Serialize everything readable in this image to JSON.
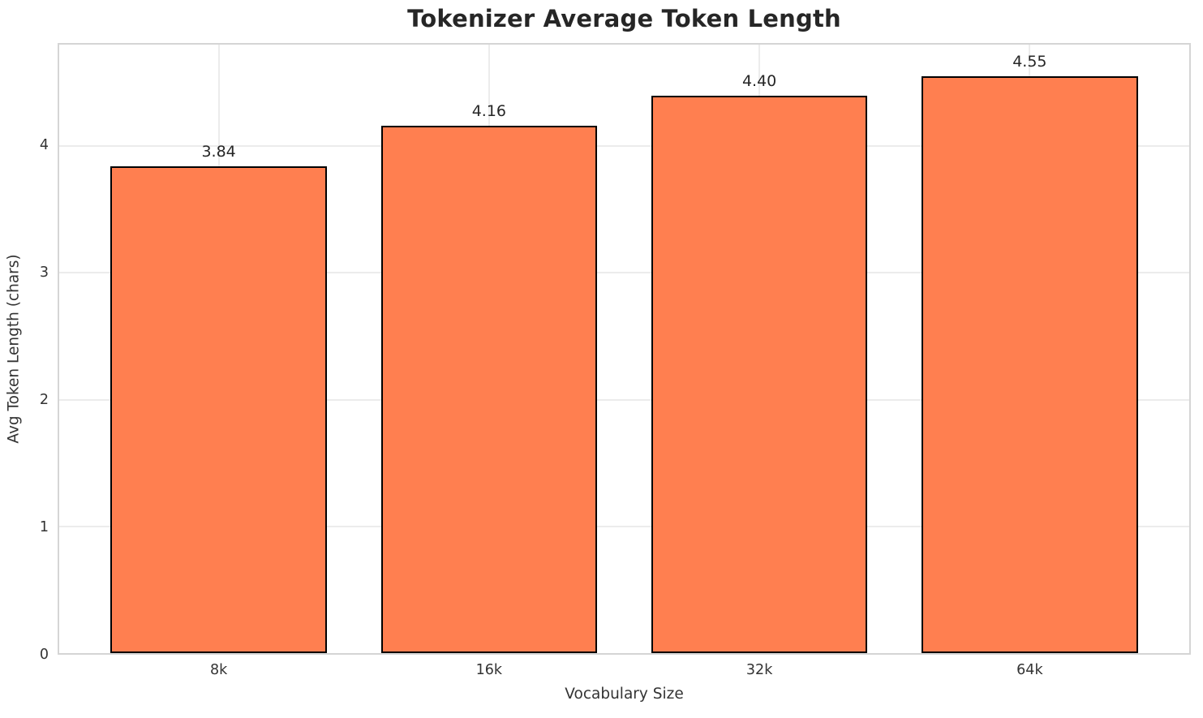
{
  "page": {
    "background_color": "#ffffff"
  },
  "chart_data": {
    "type": "bar",
    "title": "Tokenizer Average Token Length",
    "categories": [
      "8k",
      "16k",
      "32k",
      "64k"
    ],
    "values": [
      3.84,
      4.16,
      4.4,
      4.55
    ],
    "value_labels": [
      "3.84",
      "4.16",
      "4.40",
      "4.55"
    ],
    "xlabel": "Vocabulary Size",
    "ylabel": "Avg Token Length (chars)",
    "ylim": [
      0,
      4.8
    ],
    "yticks": [
      0,
      1,
      2,
      3,
      4
    ],
    "grid": true,
    "legend": "none",
    "bar_color": "#FF7F50",
    "bar_edge_color": "#000000",
    "gridline_color": "#ececec",
    "spine_color": "#d5d5d5",
    "tick_text_color": "#333333",
    "title_color": "#262626"
  }
}
